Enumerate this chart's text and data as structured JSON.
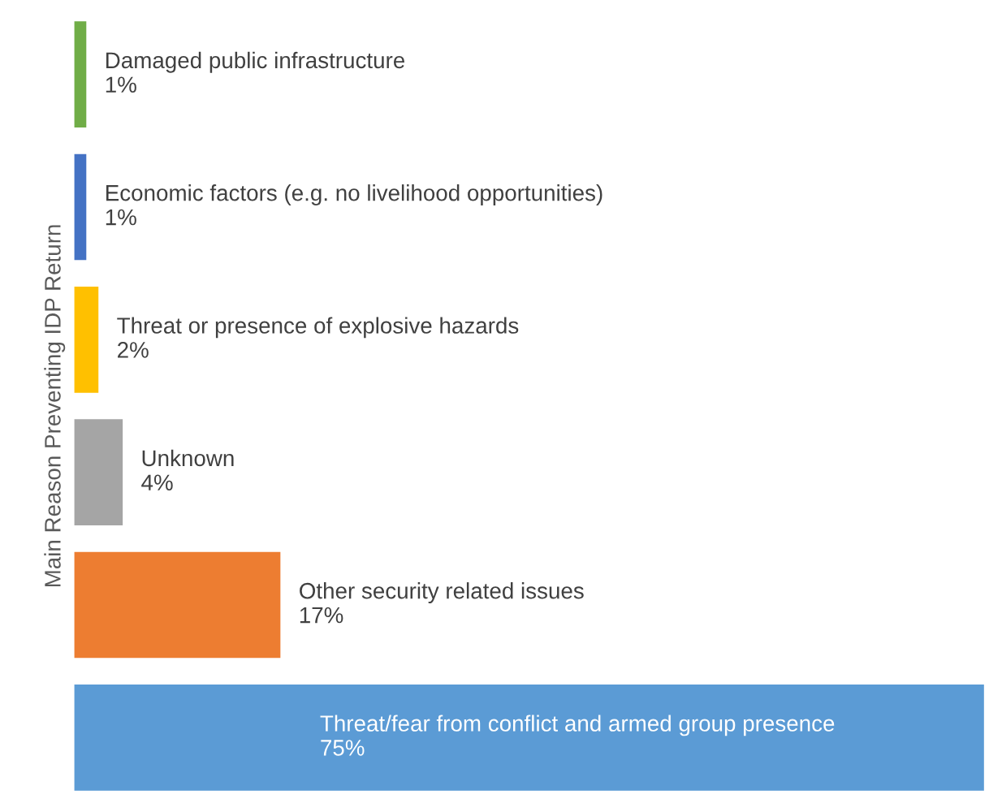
{
  "chart_data": {
    "type": "bar",
    "orientation": "horizontal",
    "ylabel": "Main Reason Preventing IDP Return",
    "categories": [
      "Damaged public infrastructure",
      "Economic factors (e.g. no livelihood opportunities)",
      "Threat or presence of explosive hazards",
      "Unknown",
      "Other security related issues",
      "Threat/fear from conflict and armed group presence"
    ],
    "values": [
      1,
      1,
      2,
      4,
      17,
      75
    ],
    "value_labels": [
      "1%",
      "1%",
      "2%",
      "4%",
      "17%",
      "75%"
    ],
    "colors": [
      "#70ad47",
      "#4472c4",
      "#ffc000",
      "#a5a5a5",
      "#ed7d31",
      "#5b9bd5"
    ],
    "tick_labels": false
  }
}
